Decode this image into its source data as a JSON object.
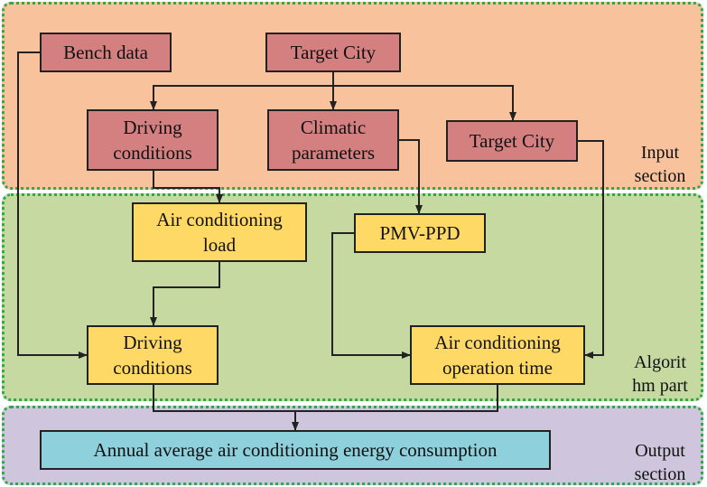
{
  "sections": {
    "input": "Input\nsection",
    "algorithm": "Algorit\nhm part",
    "output": "Output\nsection"
  },
  "boxes": {
    "bench_data": "Bench data",
    "target_city_top": "Target City",
    "driving_conditions_input": "Driving\nconditions",
    "climatic_parameters": "Climatic\nparameters",
    "target_city_right": "Target City",
    "ac_load": "Air conditioning\nload",
    "pmv_ppd": "PMV-PPD",
    "driving_conditions_algo": "Driving\nconditions",
    "ac_operation_time": "Air conditioning\noperation time",
    "annual_energy": "Annual average air conditioning energy consumption"
  },
  "colors": {
    "input_bg": "#f7c29c",
    "algorithm_bg": "#c5d9a0",
    "output_bg": "#cfc5dc",
    "input_box": "#d48080",
    "algorithm_box": "#ffd966",
    "output_box": "#8fd0dd",
    "section_border": "#2fa84a"
  }
}
